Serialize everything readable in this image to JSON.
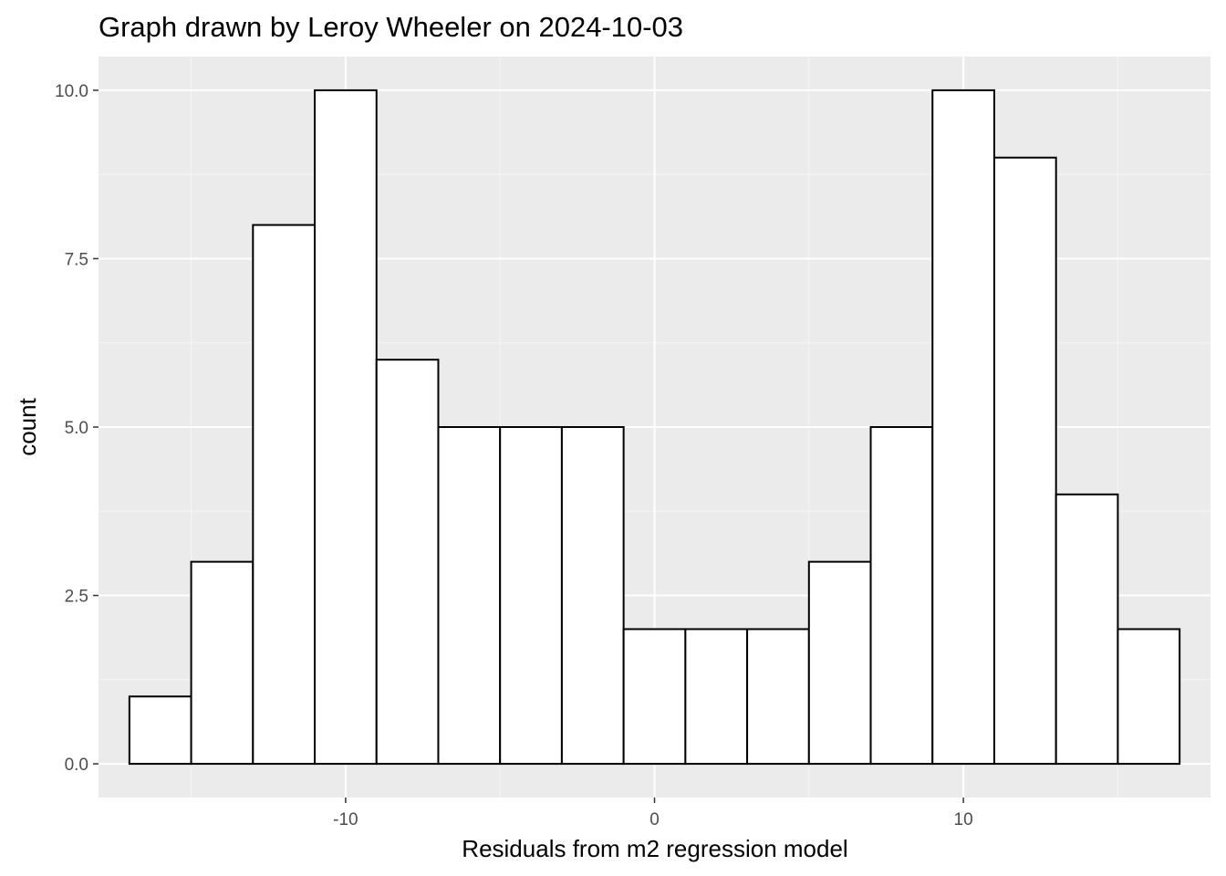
{
  "chart_data": {
    "type": "bar",
    "title": "Graph drawn by Leroy Wheeler on 2024-10-03",
    "xlabel": "Residuals from m2 regression model",
    "ylabel": "count",
    "xlim": [
      -18,
      18
    ],
    "ylim": [
      -0.5,
      10.5
    ],
    "x_ticks": [
      -10,
      0,
      10
    ],
    "x_tick_labels": [
      "-10",
      "0",
      "10"
    ],
    "y_ticks": [
      0,
      2.5,
      5,
      7.5,
      10
    ],
    "y_tick_labels": [
      "0.0",
      "2.5",
      "5.0",
      "7.5",
      "10.0"
    ],
    "bin_width": 2,
    "bins": [
      {
        "x0": -17,
        "x1": -15,
        "count": 1
      },
      {
        "x0": -15,
        "x1": -13,
        "count": 3
      },
      {
        "x0": -13,
        "x1": -11,
        "count": 8
      },
      {
        "x0": -11,
        "x1": -9,
        "count": 10
      },
      {
        "x0": -9,
        "x1": -7,
        "count": 6
      },
      {
        "x0": -7,
        "x1": -5,
        "count": 5
      },
      {
        "x0": -5,
        "x1": -3,
        "count": 5
      },
      {
        "x0": -3,
        "x1": -1,
        "count": 5
      },
      {
        "x0": -1,
        "x1": 1,
        "count": 2
      },
      {
        "x0": 1,
        "x1": 3,
        "count": 2
      },
      {
        "x0": 3,
        "x1": 5,
        "count": 2
      },
      {
        "x0": 5,
        "x1": 7,
        "count": 3
      },
      {
        "x0": 7,
        "x1": 9,
        "count": 5
      },
      {
        "x0": 9,
        "x1": 11,
        "count": 10
      },
      {
        "x0": 11,
        "x1": 13,
        "count": 9
      },
      {
        "x0": 13,
        "x1": 15,
        "count": 4
      },
      {
        "x0": 15,
        "x1": 17,
        "count": 2
      }
    ],
    "grid": true,
    "colors": {
      "panel_background": "#ebebeb",
      "grid_major": "#ffffff",
      "grid_minor": "#f5f5f5",
      "bar_fill": "#ffffff",
      "bar_outline": "#000000"
    }
  }
}
